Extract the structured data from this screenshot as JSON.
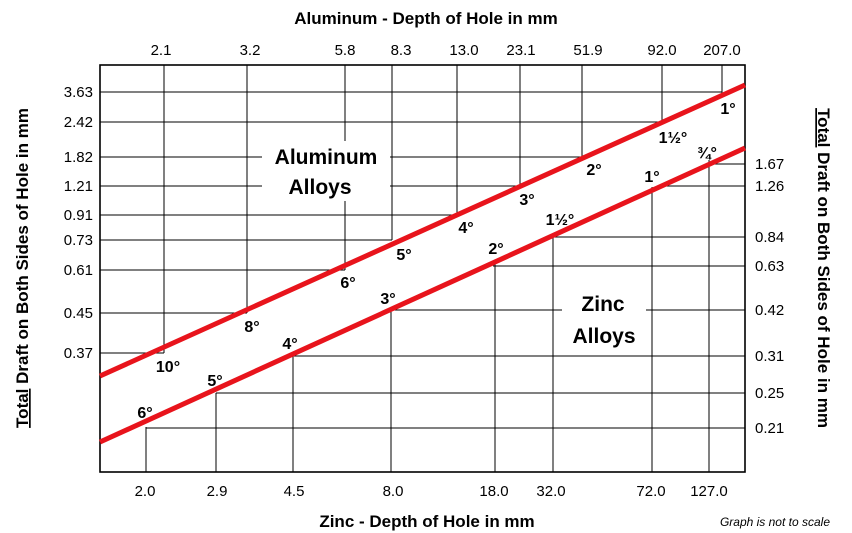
{
  "chart_data": {
    "type": "line",
    "title": "",
    "top_axis_label": "Aluminum - Depth of Hole in mm",
    "top_ticks": [
      "2.1",
      "3.2",
      "5.8",
      "8.3",
      "13.0",
      "23.1",
      "51.9",
      "92.0",
      "207.0"
    ],
    "bottom_axis_label": "Zinc - Depth of Hole in mm",
    "bottom_ticks": [
      "2.0",
      "2.9",
      "4.5",
      "8.0",
      "18.0",
      "32.0",
      "72.0",
      "127.0"
    ],
    "left_axis_label_underlined": "Total",
    "left_axis_label_rest": " Draft on Both Sides of Hole in mm",
    "left_ticks": [
      "3.63",
      "2.42",
      "1.82",
      "1.21",
      "0.91",
      "0.73",
      "0.61",
      "0.45",
      "0.37"
    ],
    "right_axis_label_underlined": "Total",
    "right_axis_label_rest": " Draft on Both Sides of Hole in mm",
    "right_ticks": [
      "1.67",
      "1.26",
      "0.84",
      "0.63",
      "0.42",
      "0.31",
      "0.25",
      "0.21"
    ],
    "note": "Graph is not to scale",
    "series": [
      {
        "region_label_line1": "Aluminum",
        "region_label_line2": "Alloys",
        "points": [
          {
            "depth": "2.1",
            "draft": "0.37",
            "angle": "10°"
          },
          {
            "depth": "3.2",
            "draft": "0.45",
            "angle": "8°"
          },
          {
            "depth": "5.8",
            "draft": "0.61",
            "angle": "6°"
          },
          {
            "depth": "8.3",
            "draft": "0.73",
            "angle": "5°"
          },
          {
            "depth": "13.0",
            "draft": "0.91",
            "angle": "4°"
          },
          {
            "depth": "23.1",
            "draft": "1.21",
            "angle": "3°"
          },
          {
            "depth": "51.9",
            "draft": "1.82",
            "angle": "2°"
          },
          {
            "depth": "92.0",
            "draft": "2.42",
            "angle": "1½°"
          },
          {
            "depth": "207.0",
            "draft": "3.63",
            "angle": "1°"
          }
        ]
      },
      {
        "region_label_line1": "Zinc",
        "region_label_line2": "Alloys",
        "points": [
          {
            "depth": "2.0",
            "draft": "0.21",
            "angle": "6°"
          },
          {
            "depth": "2.9",
            "draft": "0.25",
            "angle": "5°"
          },
          {
            "depth": "4.5",
            "draft": "0.31",
            "angle": "4°"
          },
          {
            "depth": "8.0",
            "draft": "0.42",
            "angle": "3°"
          },
          {
            "depth": "18.0",
            "draft": "0.63",
            "angle": "2°"
          },
          {
            "depth": "32.0",
            "draft": "0.84",
            "angle": "1½°"
          },
          {
            "depth": "72.0",
            "draft": "1.26",
            "angle": "1°"
          },
          {
            "depth": "127.0",
            "draft": "1.67",
            "angle": "¾°"
          }
        ]
      }
    ],
    "line_color": "#e8141c",
    "grid": true
  }
}
